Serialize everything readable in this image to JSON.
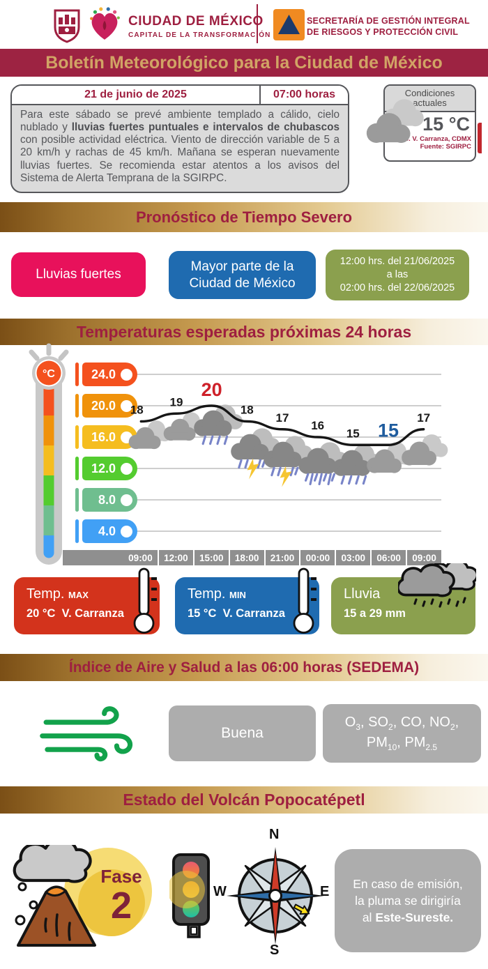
{
  "header": {
    "city_title": "CIUDAD DE MÉXICO",
    "city_subtitle": "CAPITAL DE LA TRANSFORMACIÓN",
    "secretary_line1": "SECRETARÍA DE GESTIÓN INTEGRAL",
    "secretary_line2": "DE RIESGOS Y PROTECCIÓN CIVIL",
    "banner_title": "Boletín Meteorológico para la Ciudad de México"
  },
  "bulletin": {
    "date": "21 de junio de 2025",
    "time": "07:00 horas",
    "text_before": "Para este sábado se prevé ambiente templado a cálido, cielo nublado y ",
    "text_bold": "lluvias fuertes puntuales e intervalos de chubascos",
    "text_after": " con posible actividad eléctrica. Viento de dirección variable de 5 a 20 km/h y rachas de 45 km/h. Mañana se esperan nuevamente lluvias fuertes. Se recomienda estar atentos a los avisos del Sistema de Alerta Temprana de la SGIRPC."
  },
  "current_conditions": {
    "title": "Condiciones actuales",
    "temperature": "15 °C",
    "location": "Alc. V. Carranza, CDMX",
    "source": "Fuente: SGIRPC"
  },
  "severe_weather": {
    "section_title": "Pronóstico de Tiempo Severo",
    "phenomenon": "Lluvias fuertes",
    "area_line1": "Mayor parte de la",
    "area_line2": "Ciudad de México",
    "period_line1": "12:00 hrs. del 21/06/2025",
    "period_line2": "a las",
    "period_line3": "02:00 hrs. del 22/06/2025"
  },
  "chart_data": {
    "type": "line",
    "title": "Temperaturas esperadas próximas 24 horas",
    "x": [
      "09:00",
      "12:00",
      "15:00",
      "18:00",
      "21:00",
      "00:00",
      "03:00",
      "06:00",
      "09:00"
    ],
    "values": [
      18,
      19,
      20,
      18,
      17,
      16,
      15,
      15,
      17
    ],
    "max_index": 2,
    "min_index": 7,
    "icons": [
      "cloudy",
      "cloudy",
      "rain",
      "storm",
      "storm",
      "heavy-rain",
      "rain",
      "cloudy",
      "cloudy"
    ],
    "y_ticks": [
      24.0,
      20.0,
      16.0,
      12.0,
      8.0,
      4.0
    ],
    "y_tick_colors": [
      "#F4511E",
      "#F0920B",
      "#F5BD1F",
      "#54CC2F",
      "#6FBE8F",
      "#41A0F5"
    ],
    "ylabel": "°C",
    "ylim": [
      2,
      26
    ],
    "grid": true,
    "legend": "none",
    "line_color": "#161616",
    "max_label_color": "#CE2029",
    "min_label_color": "#1F5C9E"
  },
  "summary": {
    "max": {
      "label": "Temp.",
      "unit": "MAX",
      "temp": "20 °C",
      "station": "V. Carranza"
    },
    "min": {
      "label": "Temp.",
      "unit": "MIN",
      "temp": "15 °C",
      "station": "V. Carranza"
    },
    "rain": {
      "label": "Lluvia",
      "value": "15 a 29 mm"
    }
  },
  "air_quality": {
    "section_title": "Índice de Aire y Salud a las 06:00 horas (SEDEMA)",
    "status": "Buena",
    "pollutants": [
      {
        "t": "O",
        "s": "3"
      },
      {
        "t": ", SO",
        "s": "2"
      },
      {
        "t": ", CO, NO",
        "s": "2"
      },
      {
        "t": ",",
        "br": true
      },
      {
        "t": "PM",
        "s": "10"
      },
      {
        "t": ", PM",
        "s": "2.5"
      }
    ]
  },
  "volcano": {
    "section_title": "Estado del Volcán Popocatépetl",
    "phase_label": "Fase",
    "phase_number": "2",
    "compass": {
      "n": "N",
      "e": "E",
      "s": "S",
      "w": "W"
    },
    "emission_line1": "En caso de emisión,",
    "emission_line2": "la pluma se dirigiría",
    "emission_line3_prefix": "al ",
    "emission_line3_bold": "Este-Sureste."
  },
  "icons_legend": {
    "cloud-icon": "gray clouds",
    "rain-icon": "cloud with rain",
    "storm-icon": "cloud with rain and lightning",
    "thermometer-icon": "thermometer",
    "wind-icon": "green wind swirls",
    "traffic-light-icon": "traffic light on amber",
    "compass-icon": "compass rose",
    "volcano-icon": "erupting volcano"
  },
  "colors": {
    "maroon": "#9E1F40",
    "gold": "#D1A465",
    "pink": "#E8115B",
    "blue": "#1F6BB0",
    "olive": "#8BA04E",
    "red": "#D3331C",
    "gray_box": "#ADADAD"
  }
}
